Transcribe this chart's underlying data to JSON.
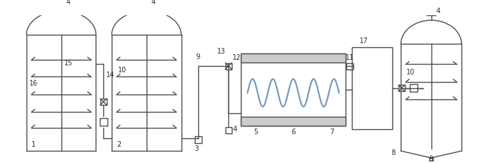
{
  "bg_color": "#ffffff",
  "line_color": "#4a4a4a",
  "lw": 1.0,
  "fig_width": 6.99,
  "fig_height": 2.36,
  "dpi": 100,
  "font_size": 7.0
}
